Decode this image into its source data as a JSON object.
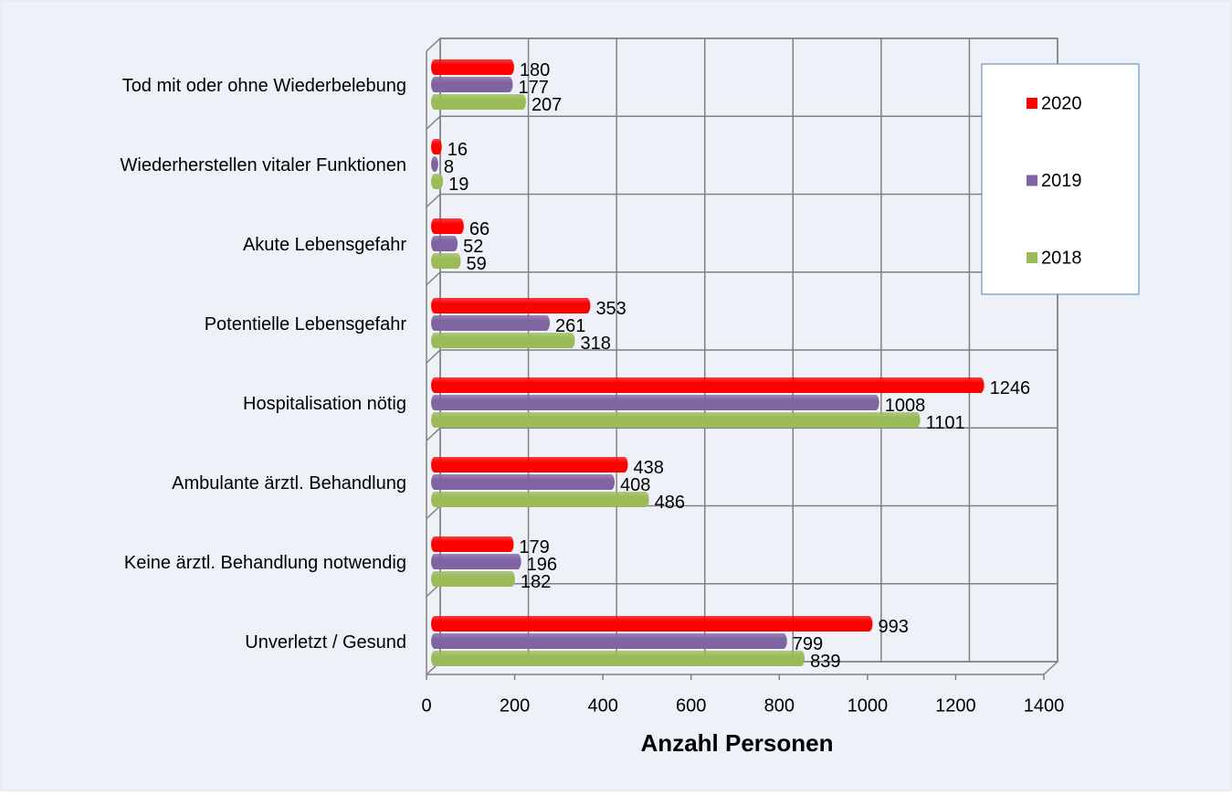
{
  "chart_data": {
    "type": "bar",
    "orientation": "horizontal",
    "x_label": "Anzahl Personen",
    "categories": [
      "Tod mit oder ohne Wiederbelebung",
      "Wiederherstellen vitaler Funktionen",
      "Akute Lebensgefahr",
      "Potentielle Lebensgefahr",
      "Hospitalisation nötig",
      "Ambulante ärztl. Behandlung",
      "Keine ärztl. Behandlung notwendig",
      "Unverletzt / Gesund"
    ],
    "series": [
      {
        "name": "2020",
        "color": "#ff0000",
        "values": [
          180,
          16,
          66,
          353,
          1246,
          438,
          179,
          993
        ]
      },
      {
        "name": "2019",
        "color": "#8064a2",
        "values": [
          177,
          8,
          52,
          261,
          1008,
          408,
          196,
          799
        ]
      },
      {
        "name": "2018",
        "color": "#9bbb59",
        "values": [
          207,
          19,
          59,
          318,
          1101,
          486,
          182,
          839
        ]
      }
    ],
    "xlim": [
      0,
      1400
    ],
    "xticks": [
      0,
      200,
      400,
      600,
      800,
      1000,
      1200,
      1400
    ],
    "grid": true,
    "legend": "right"
  }
}
